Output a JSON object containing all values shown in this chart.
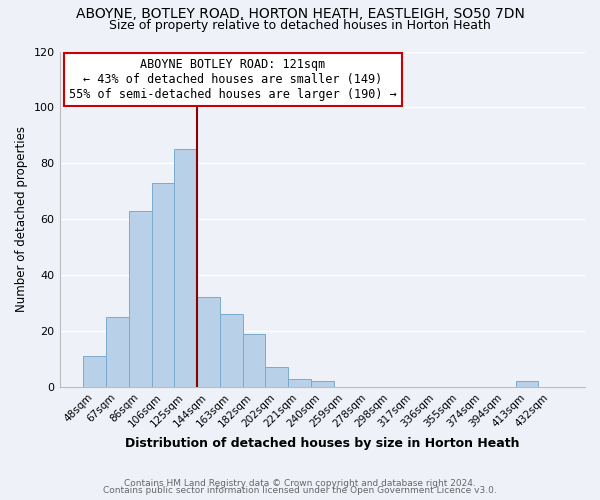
{
  "title": "ABOYNE, BOTLEY ROAD, HORTON HEATH, EASTLEIGH, SO50 7DN",
  "subtitle": "Size of property relative to detached houses in Horton Heath",
  "xlabel": "Distribution of detached houses by size in Horton Heath",
  "ylabel": "Number of detached properties",
  "footer_line1": "Contains HM Land Registry data © Crown copyright and database right 2024.",
  "footer_line2": "Contains public sector information licensed under the Open Government Licence v3.0.",
  "bar_labels": [
    "48sqm",
    "67sqm",
    "86sqm",
    "106sqm",
    "125sqm",
    "144sqm",
    "163sqm",
    "182sqm",
    "202sqm",
    "221sqm",
    "240sqm",
    "259sqm",
    "278sqm",
    "298sqm",
    "317sqm",
    "336sqm",
    "355sqm",
    "374sqm",
    "394sqm",
    "413sqm",
    "432sqm"
  ],
  "bar_values": [
    11,
    25,
    63,
    73,
    85,
    32,
    26,
    19,
    7,
    3,
    2,
    0,
    0,
    0,
    0,
    0,
    0,
    0,
    0,
    2,
    0
  ],
  "bar_color": "#b8d0e8",
  "bar_edge_color": "#7aaad0",
  "ylim": [
    0,
    120
  ],
  "yticks": [
    0,
    20,
    40,
    60,
    80,
    100,
    120
  ],
  "vline_idx": 4,
  "vline_color": "#8b0000",
  "annotation_title": "ABOYNE BOTLEY ROAD: 121sqm",
  "annotation_line1": "← 43% of detached houses are smaller (149)",
  "annotation_line2": "55% of semi-detached houses are larger (190) →",
  "annotation_box_color": "#ffffff",
  "annotation_border_color": "#cc0000",
  "bg_color": "#eef2f8",
  "grid_color": "#ffffff"
}
